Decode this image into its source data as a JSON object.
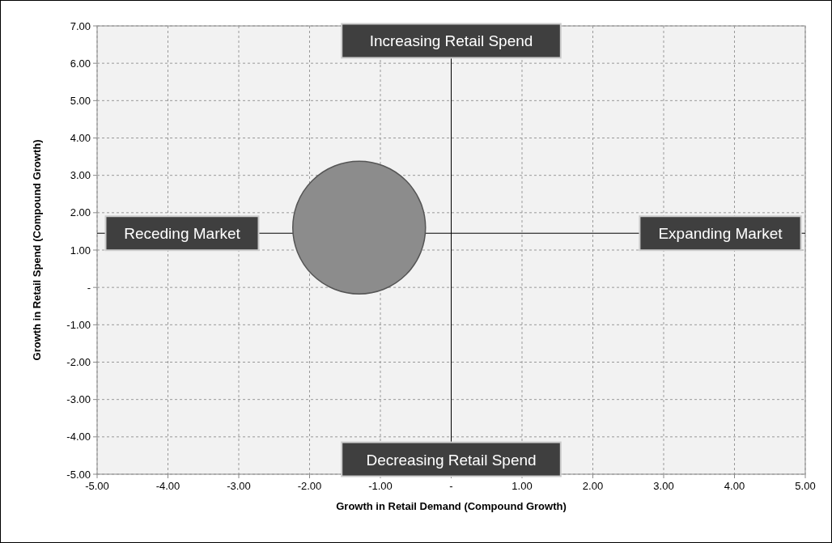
{
  "chart_data": {
    "type": "bubble",
    "xlabel": "Growth in Retail Demand (Compound Growth)",
    "ylabel": "Growth in Retail Spend (Compound Growth)",
    "x": [
      -1.3
    ],
    "values": [
      1.6
    ],
    "sizes": [
      1
    ],
    "color": "#8c8c8c",
    "xlim": [
      -5,
      5
    ],
    "xticks": [
      {
        "value": -5,
        "label": "-5.00"
      },
      {
        "value": -4,
        "label": "-4.00"
      },
      {
        "value": -3,
        "label": "-3.00"
      },
      {
        "value": -2,
        "label": "-2.00"
      },
      {
        "value": -1,
        "label": "-1.00"
      },
      {
        "value": 0,
        "label": "-"
      },
      {
        "value": 1,
        "label": "1.00"
      },
      {
        "value": 2,
        "label": "2.00"
      },
      {
        "value": 3,
        "label": "3.00"
      },
      {
        "value": 4,
        "label": "4.00"
      },
      {
        "value": 5,
        "label": "5.00"
      }
    ],
    "ylim": [
      -5,
      7
    ],
    "yticks": [
      {
        "value": -5,
        "label": "-5.00"
      },
      {
        "value": -4,
        "label": "-4.00"
      },
      {
        "value": -3,
        "label": "-3.00"
      },
      {
        "value": -2,
        "label": "-2.00"
      },
      {
        "value": -1,
        "label": "-1.00"
      },
      {
        "value": 0,
        "label": "-"
      },
      {
        "value": 1,
        "label": "1.00"
      },
      {
        "value": 2,
        "label": "2.00"
      },
      {
        "value": 3,
        "label": "3.00"
      },
      {
        "value": 4,
        "label": "4.00"
      },
      {
        "value": 5,
        "label": "5.00"
      },
      {
        "value": 6,
        "label": "6.00"
      },
      {
        "value": 7,
        "label": "7.00"
      }
    ],
    "grid": true,
    "ref_lines": [
      {
        "axis": "x",
        "value": 0,
        "color": "#000000"
      },
      {
        "axis": "y",
        "value": 1.45,
        "color": "#000000"
      }
    ],
    "annotations": [
      {
        "text": "Increasing Retail Spend",
        "x": 0,
        "y": 6.6
      },
      {
        "text": "Decreasing Retail Spend",
        "x": 0,
        "y": -4.6
      },
      {
        "text": "Receding Market",
        "x": -3.8,
        "y": 1.45
      },
      {
        "text": "Expanding Market",
        "x": 3.8,
        "y": 1.45
      }
    ]
  }
}
